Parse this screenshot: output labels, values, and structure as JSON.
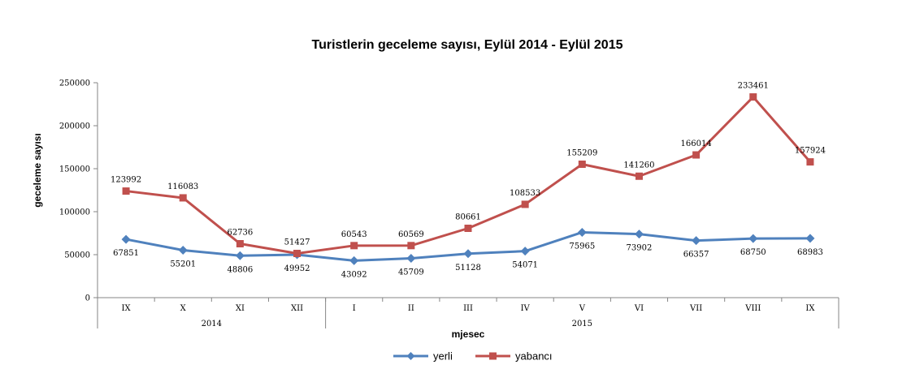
{
  "chart_data": {
    "type": "line",
    "title": "Turistlerin geceleme sayısı,  Eylül 2014 - Eylül 2015",
    "xlabel": "mjesec",
    "ylabel": "geceleme sayısı",
    "ylim": [
      0,
      250000
    ],
    "yticks": [
      "0",
      "50000",
      "100000",
      "150000",
      "200000",
      "250000"
    ],
    "ytick_values": [
      0,
      50000,
      100000,
      150000,
      200000,
      250000
    ],
    "categories": [
      "IX",
      "X",
      "XI",
      "XII",
      "I",
      "II",
      "III",
      "IV",
      "V",
      "VI",
      "VII",
      "VIII",
      "IX"
    ],
    "groups": [
      {
        "label": "2014",
        "count": 4
      },
      {
        "label": "2015",
        "count": 9
      }
    ],
    "series": [
      {
        "name": "yerli",
        "color": "#4F81BD",
        "marker": "diamond",
        "values": [
          67851,
          55201,
          48806,
          49952,
          43092,
          45709,
          51128,
          54071,
          75965,
          73902,
          66357,
          68750,
          68983
        ],
        "labels": [
          "67851",
          "55201",
          "48806",
          "49952",
          "43092",
          "45709",
          "51128",
          "54071",
          "75965",
          "73902",
          "66357",
          "68750",
          "68983"
        ]
      },
      {
        "name": "yabancı",
        "color": "#C0504D",
        "marker": "square",
        "values": [
          123992,
          116083,
          62736,
          51427,
          60543,
          60569,
          80661,
          108533,
          155209,
          141260,
          166014,
          233461,
          157924
        ],
        "labels": [
          "123992",
          "116083",
          "62736",
          "51427",
          "60543",
          "60569",
          "80661",
          "108533",
          "155209",
          "141260",
          "166014",
          "233461",
          "157924"
        ]
      }
    ],
    "grid": false,
    "legend_position": "bottom"
  }
}
